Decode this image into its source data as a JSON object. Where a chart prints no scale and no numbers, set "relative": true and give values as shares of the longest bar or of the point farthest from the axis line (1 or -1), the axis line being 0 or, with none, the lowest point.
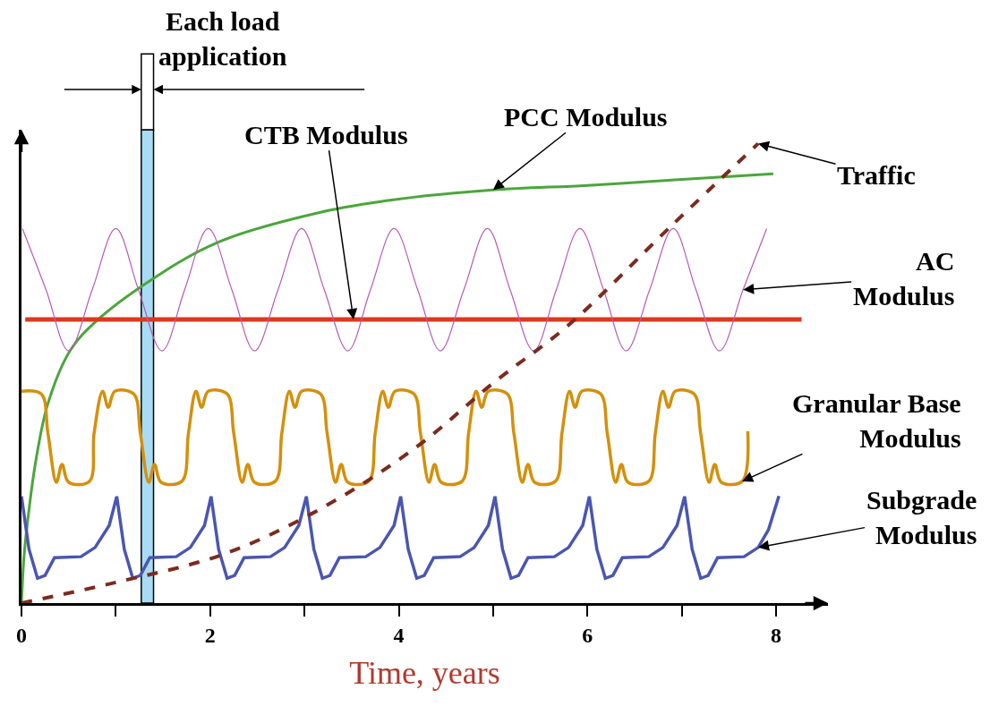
{
  "chart_data": {
    "type": "line",
    "relative": true,
    "xlabel": "Time, years",
    "xlim": [
      0,
      8.55
    ],
    "xticks": [
      0,
      {
        "value": 1,
        "label": null
      },
      2,
      {
        "value": 3,
        "label": null
      },
      4,
      {
        "value": 5,
        "label": null
      },
      6,
      {
        "value": 7,
        "label": null
      },
      8
    ],
    "legend": false,
    "marker": "none",
    "bands": [
      {
        "axis": "x",
        "from": 1.27,
        "to": 1.4,
        "label": "Each load application",
        "color": "#a8dcf5"
      }
    ],
    "series": [
      {
        "name": "PCC Modulus",
        "color": "#4aa63c",
        "x": [
          0,
          0.026,
          0.06,
          0.15,
          0.28,
          0.52,
          0.79,
          1.33,
          2.07,
          3.16,
          4.0,
          5.0,
          6.0,
          7.0,
          7.97
        ],
        "values": [
          0,
          0.099,
          0.169,
          0.307,
          0.434,
          0.551,
          0.613,
          0.697,
          0.784,
          0.85,
          0.879,
          0.899,
          0.909,
          0.922,
          0.934
        ]
      },
      {
        "name": "CTB Modulus",
        "color": "#d93a1e",
        "x": [
          0.04,
          8.27
        ],
        "values": [
          0.617,
          0.617
        ]
      },
      {
        "name": "AC Modulus",
        "color": "#b45cb4",
        "x": [
          0.01,
          0.26,
          0.5,
          0.75,
          1.0,
          1.24,
          1.49,
          1.73,
          1.98,
          2.23,
          2.47,
          2.72,
          2.97,
          3.21,
          3.46,
          3.7,
          3.95,
          4.2,
          4.44,
          4.69,
          4.94,
          5.18,
          5.43,
          5.67,
          5.92,
          6.17,
          6.41,
          6.66,
          6.91,
          7.15,
          7.4,
          7.65,
          7.9
        ],
        "values": [
          0.815,
          0.682,
          0.549,
          0.682,
          0.815,
          0.682,
          0.549,
          0.682,
          0.815,
          0.682,
          0.549,
          0.682,
          0.815,
          0.682,
          0.549,
          0.682,
          0.815,
          0.682,
          0.549,
          0.682,
          0.815,
          0.682,
          0.549,
          0.682,
          0.815,
          0.682,
          0.549,
          0.682,
          0.815,
          0.682,
          0.549,
          0.682,
          0.815
        ]
      },
      {
        "name": "Granular Base Modulus",
        "color": "#d4900c",
        "x": [
          0,
          0.21,
          0.28,
          0.37,
          0.43,
          0.5,
          0.72,
          0.77,
          0.86,
          0.92,
          0.99,
          1.19,
          1.26,
          1.35,
          1.41,
          1.48,
          1.7,
          1.77,
          1.85,
          1.91,
          1.98,
          2.18,
          2.25,
          2.34,
          2.4,
          2.47,
          2.69,
          2.76,
          2.84,
          2.9,
          2.97,
          3.17,
          3.24,
          3.33,
          3.39,
          3.46,
          3.68,
          3.75,
          3.83,
          3.89,
          3.96,
          4.16,
          4.23,
          4.32,
          4.38,
          4.45,
          4.67,
          4.74,
          4.82,
          4.88,
          4.95,
          5.15,
          5.22,
          5.31,
          5.37,
          5.44,
          5.66,
          5.73,
          5.81,
          5.87,
          5.94,
          6.14,
          6.21,
          6.3,
          6.36,
          6.43,
          6.65,
          6.72,
          6.8,
          6.86,
          6.93,
          7.13,
          7.2,
          7.29,
          7.35,
          7.42,
          7.64,
          7.7
        ],
        "values": [
          0.461,
          0.455,
          0.37,
          0.263,
          0.302,
          0.263,
          0.265,
          0.37,
          0.461,
          0.426,
          0.461,
          0.455,
          0.37,
          0.263,
          0.302,
          0.263,
          0.265,
          0.37,
          0.461,
          0.426,
          0.461,
          0.455,
          0.37,
          0.263,
          0.302,
          0.263,
          0.265,
          0.37,
          0.461,
          0.426,
          0.461,
          0.455,
          0.37,
          0.263,
          0.302,
          0.263,
          0.265,
          0.37,
          0.461,
          0.426,
          0.461,
          0.455,
          0.37,
          0.263,
          0.302,
          0.263,
          0.265,
          0.37,
          0.461,
          0.426,
          0.461,
          0.455,
          0.37,
          0.263,
          0.302,
          0.263,
          0.265,
          0.37,
          0.461,
          0.426,
          0.461,
          0.455,
          0.37,
          0.263,
          0.302,
          0.263,
          0.265,
          0.37,
          0.461,
          0.426,
          0.461,
          0.455,
          0.37,
          0.263,
          0.302,
          0.263,
          0.265,
          0.374
        ]
      },
      {
        "name": "Subgrade Modulus",
        "color": "#4a56b0",
        "x": [
          0,
          0.08,
          0.17,
          0.25,
          0.35,
          0.63,
          0.78,
          0.93,
          1.01,
          1.09,
          1.18,
          1.26,
          1.36,
          1.64,
          1.79,
          1.94,
          2.01,
          2.09,
          2.18,
          2.26,
          2.36,
          2.64,
          2.79,
          2.94,
          3.02,
          3.1,
          3.19,
          3.27,
          3.37,
          3.65,
          3.8,
          3.95,
          4.02,
          4.1,
          4.19,
          4.27,
          4.37,
          4.65,
          4.8,
          4.95,
          5.02,
          5.1,
          5.19,
          5.27,
          5.37,
          5.65,
          5.8,
          5.95,
          6.02,
          6.1,
          6.19,
          6.27,
          6.37,
          6.65,
          6.8,
          6.95,
          7.03,
          7.11,
          7.2,
          7.28,
          7.38,
          7.66,
          7.81,
          7.92,
          8.03
        ],
        "values": [
          0.232,
          0.117,
          0.054,
          0.06,
          0.099,
          0.101,
          0.121,
          0.169,
          0.232,
          0.117,
          0.054,
          0.06,
          0.099,
          0.101,
          0.121,
          0.169,
          0.232,
          0.117,
          0.054,
          0.06,
          0.099,
          0.101,
          0.121,
          0.169,
          0.232,
          0.117,
          0.054,
          0.06,
          0.099,
          0.101,
          0.121,
          0.169,
          0.232,
          0.117,
          0.054,
          0.06,
          0.099,
          0.101,
          0.121,
          0.169,
          0.232,
          0.117,
          0.054,
          0.06,
          0.099,
          0.101,
          0.121,
          0.169,
          0.232,
          0.117,
          0.054,
          0.06,
          0.099,
          0.101,
          0.121,
          0.169,
          0.232,
          0.117,
          0.054,
          0.06,
          0.099,
          0.101,
          0.121,
          0.16,
          0.233
        ]
      },
      {
        "name": "Traffic",
        "color": "#7b2b1e",
        "line_style": "dashed",
        "x": [
          0,
          1.0,
          2.15,
          3.16,
          4.17,
          5.02,
          5.8,
          6.89,
          7.81
        ],
        "values": [
          0,
          0.045,
          0.107,
          0.204,
          0.337,
          0.482,
          0.605,
          0.821,
          1.0
        ]
      }
    ]
  }
}
